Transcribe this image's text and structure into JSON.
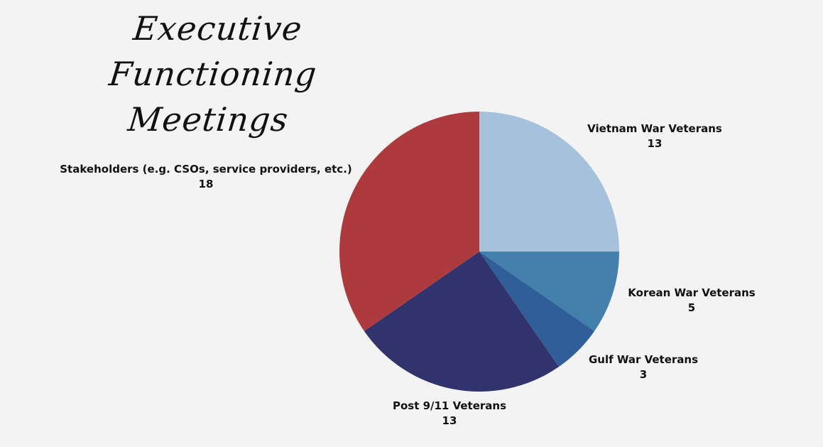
{
  "title": {
    "line1": "Executive Functioning",
    "line2": "Meetings"
  },
  "chart_data": {
    "type": "pie",
    "title": "Executive Functioning Meetings",
    "legend": "none",
    "slices": [
      {
        "label": "Vietnam War Veterans",
        "value": 13,
        "color": "#a6c1dc"
      },
      {
        "label": "Korean War Veterans",
        "value": 5,
        "color": "#4381ac"
      },
      {
        "label": "Gulf War Veterans",
        "value": 3,
        "color": "#2f5e98"
      },
      {
        "label": "Post 9/11 Veterans",
        "value": 13,
        "color": "#31346c"
      },
      {
        "label": "Stakeholders (e.g. CSOs, service providers, etc.)",
        "value": 18,
        "color": "#ad3a3d"
      }
    ]
  }
}
